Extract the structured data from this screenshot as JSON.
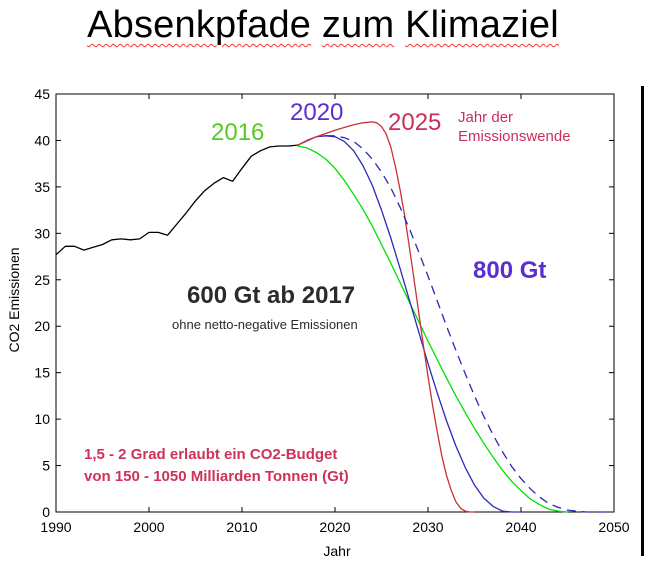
{
  "page": {
    "title_words": [
      "Absenkpfade",
      "zum",
      "Klimaziel"
    ]
  },
  "chart_data": {
    "type": "line",
    "xlabel": "Jahr",
    "ylabel": "CO2 Emissionen",
    "xlim": [
      1990,
      2050
    ],
    "ylim": [
      0,
      45
    ],
    "xticks": [
      1990,
      2000,
      2010,
      2020,
      2030,
      2040,
      2050
    ],
    "yticks": [
      0,
      5,
      10,
      15,
      20,
      25,
      30,
      35,
      40,
      45
    ],
    "grid": false,
    "colors": {
      "historical": "#000000",
      "s2016": "#00e000",
      "s2020": "#2a2ab8",
      "s2025": "#c83232",
      "s800": "#2a2ab8",
      "label_2020": "#5a2fd0",
      "label_2025": "#c8305a",
      "annotation_budget": "#d0305a",
      "annotation_800": "#5a2fd0",
      "annotation_600": "#2b2b2b"
    },
    "series": [
      {
        "key": "historical",
        "x": [
          1990,
          1991,
          1992,
          1993,
          1994,
          1995,
          1996,
          1997,
          1998,
          1999,
          2000,
          2001,
          2002,
          2003,
          2004,
          2005,
          2006,
          2007,
          2008,
          2009,
          2010,
          2011,
          2012,
          2013,
          2014,
          2015,
          2016
        ],
        "y": [
          27.7,
          28.6,
          28.6,
          28.2,
          28.5,
          28.8,
          29.3,
          29.4,
          29.3,
          29.4,
          30.1,
          30.1,
          29.8,
          31.0,
          32.2,
          33.5,
          34.6,
          35.4,
          36.0,
          35.6,
          37.0,
          38.3,
          38.9,
          39.3,
          39.4,
          39.4,
          39.5
        ]
      },
      {
        "key": "s2016",
        "x": [
          2016,
          2017,
          2018,
          2019,
          2020,
          2021,
          2022,
          2023,
          2024,
          2025,
          2026,
          2027,
          2028,
          2029,
          2030,
          2031,
          2032,
          2033,
          2034,
          2035,
          2036,
          2037,
          2038,
          2039,
          2040,
          2041,
          2042,
          2043,
          2044,
          2045
        ],
        "y": [
          39.4,
          39.2,
          38.7,
          38.0,
          37.0,
          35.7,
          34.2,
          32.6,
          30.8,
          28.8,
          26.8,
          24.7,
          22.6,
          20.5,
          18.4,
          16.4,
          14.4,
          12.5,
          10.7,
          9.0,
          7.4,
          5.9,
          4.5,
          3.3,
          2.3,
          1.4,
          0.8,
          0.3,
          0.1,
          0
        ]
      },
      {
        "key": "s2020",
        "x": [
          2016,
          2017,
          2018,
          2019,
          2020,
          2021,
          2022,
          2023,
          2024,
          2025,
          2026,
          2027,
          2028,
          2029,
          2030,
          2031,
          2032,
          2033,
          2034,
          2035,
          2036,
          2037,
          2038,
          2039,
          2040
        ],
        "y": [
          39.5,
          40.0,
          40.4,
          40.5,
          40.4,
          39.9,
          38.9,
          37.3,
          35.2,
          32.5,
          29.5,
          26.2,
          22.8,
          19.4,
          16.0,
          12.8,
          9.8,
          7.1,
          4.8,
          2.9,
          1.5,
          0.6,
          0.1,
          0,
          0
        ]
      },
      {
        "key": "s2025",
        "x": [
          2016,
          2018,
          2020,
          2022,
          2023,
          2024,
          2024.5,
          2025,
          2025.5,
          2026,
          2026.5,
          2027,
          2027.5,
          2028,
          2028.5,
          2029,
          2029.5,
          2030,
          2030.5,
          2031,
          2031.5,
          2032,
          2032.5,
          2033,
          2033.5,
          2034,
          2034.5,
          2035
        ],
        "y": [
          39.5,
          40.4,
          41.1,
          41.7,
          41.9,
          42.0,
          41.9,
          41.5,
          40.7,
          39.3,
          37.2,
          34.7,
          31.8,
          28.5,
          25.0,
          21.5,
          17.9,
          14.6,
          11.4,
          8.6,
          6.0,
          3.9,
          2.3,
          1.1,
          0.4,
          0.1,
          0,
          0
        ]
      },
      {
        "key": "s800",
        "dashed": true,
        "x": [
          2019,
          2020,
          2021,
          2022,
          2023,
          2024,
          2025,
          2026,
          2027,
          2028,
          2029,
          2030,
          2031,
          2032,
          2033,
          2034,
          2035,
          2036,
          2037,
          2038,
          2039,
          2040,
          2041,
          2042,
          2043,
          2044,
          2045,
          2046,
          2047,
          2048,
          2049,
          2050
        ],
        "y": [
          40.5,
          40.5,
          40.3,
          39.9,
          39.1,
          38.0,
          36.6,
          34.9,
          32.8,
          30.5,
          28.0,
          25.4,
          22.7,
          20.0,
          17.4,
          14.9,
          12.5,
          10.3,
          8.3,
          6.5,
          4.9,
          3.6,
          2.5,
          1.6,
          0.9,
          0.5,
          0.2,
          0.1,
          0,
          0,
          0,
          0
        ]
      }
    ],
    "labels": {
      "l2016": "2016",
      "l2020": "2020",
      "l2025": "2025",
      "jahr_der_1": "Jahr der",
      "jahr_der_2": "Emissionswende",
      "gt800": "800 Gt",
      "gt600_main": "600 Gt ab 2017",
      "gt600_sub": "ohne netto-negative Emissionen",
      "budget_1": "1,5 - 2 Grad erlaubt ein CO2-Budget",
      "budget_2": "von 150 - 1050 Milliarden Tonnen (Gt)"
    }
  }
}
